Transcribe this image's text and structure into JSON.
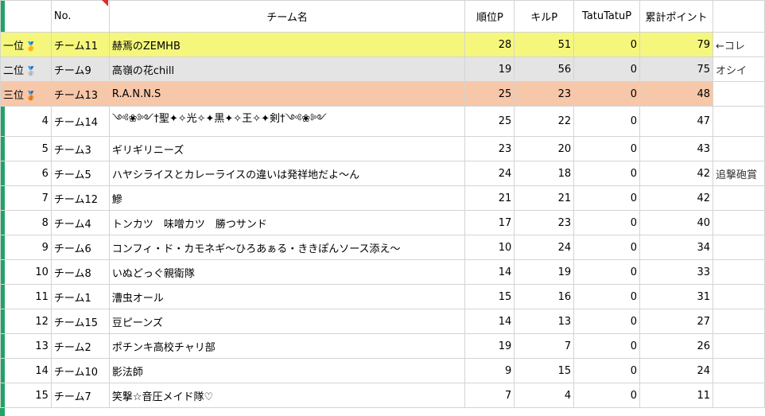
{
  "headers": {
    "no": "No.",
    "team": "チーム名",
    "rank_p": "順位P",
    "kill_p": "キルP",
    "tatu_p": "TatuTatuP",
    "total": "累計ポイント"
  },
  "medals": {
    "gold": "🥇",
    "silver": "🥈",
    "bronze": "🥉"
  },
  "rows": [
    {
      "rank": "一位",
      "medal": "gold",
      "no": "チーム11",
      "team": "赫焉のZEMHB",
      "rank_p": "28",
      "kill_p": "51",
      "tatu_p": "0",
      "total": "79",
      "note": "←コレ"
    },
    {
      "rank": "二位",
      "medal": "silver",
      "no": "チーム9",
      "team": "高嶺の花chill",
      "rank_p": "19",
      "kill_p": "56",
      "tatu_p": "0",
      "total": "75",
      "note": "オシイ"
    },
    {
      "rank": "三位",
      "medal": "bronze",
      "no": "チーム13",
      "team": "R.A.N.N.S",
      "rank_p": "25",
      "kill_p": "23",
      "tatu_p": "0",
      "total": "48",
      "note": ""
    },
    {
      "rank": "4",
      "no": "チーム14",
      "team": "༺❀༻†聖✦✧光✧✦黒✦✧王✧✦剣†༺❀༻",
      "rank_p": "25",
      "kill_p": "22",
      "tatu_p": "0",
      "total": "47",
      "note": ""
    },
    {
      "rank": "5",
      "no": "チーム3",
      "team": "ギリギリニーズ",
      "rank_p": "23",
      "kill_p": "20",
      "tatu_p": "0",
      "total": "43",
      "note": ""
    },
    {
      "rank": "6",
      "no": "チーム5",
      "team": "ハヤシライスとカレーライスの違いは発祥地だよ～ん",
      "rank_p": "24",
      "kill_p": "18",
      "tatu_p": "0",
      "total": "42",
      "note": "追撃砲賞"
    },
    {
      "rank": "7",
      "no": "チーム12",
      "team": "鰺",
      "rank_p": "21",
      "kill_p": "21",
      "tatu_p": "0",
      "total": "42",
      "note": ""
    },
    {
      "rank": "8",
      "no": "チーム4",
      "team": "トンカツ　味噌カツ　勝つサンド",
      "rank_p": "17",
      "kill_p": "23",
      "tatu_p": "0",
      "total": "40",
      "note": ""
    },
    {
      "rank": "9",
      "no": "チーム6",
      "team": "コンフィ・ド・カモネギ～ひろあぁる・ききぽんソース添え～",
      "rank_p": "10",
      "kill_p": "24",
      "tatu_p": "0",
      "total": "34",
      "note": ""
    },
    {
      "rank": "10",
      "no": "チーム8",
      "team": "いぬどっぐ親衛隊",
      "rank_p": "14",
      "kill_p": "19",
      "tatu_p": "0",
      "total": "33",
      "note": ""
    },
    {
      "rank": "11",
      "no": "チーム1",
      "team": "漕虫オール",
      "rank_p": "15",
      "kill_p": "16",
      "tatu_p": "0",
      "total": "31",
      "note": ""
    },
    {
      "rank": "12",
      "no": "チーム15",
      "team": "豆ピーンズ",
      "rank_p": "14",
      "kill_p": "13",
      "tatu_p": "0",
      "total": "27",
      "note": ""
    },
    {
      "rank": "13",
      "no": "チーム2",
      "team": "ポチンキ高校チャリ部",
      "rank_p": "19",
      "kill_p": "7",
      "tatu_p": "0",
      "total": "26",
      "note": ""
    },
    {
      "rank": "14",
      "no": "チーム10",
      "team": "影法師",
      "rank_p": "9",
      "kill_p": "15",
      "tatu_p": "0",
      "total": "24",
      "note": ""
    },
    {
      "rank": "15",
      "no": "チーム7",
      "team": "笑撃☆音圧メイド隊♡",
      "rank_p": "7",
      "kill_p": "4",
      "tatu_p": "0",
      "total": "11",
      "note": ""
    }
  ]
}
